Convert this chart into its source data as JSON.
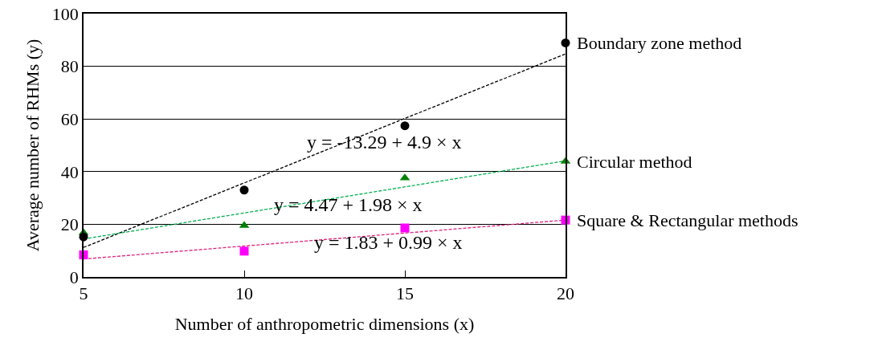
{
  "chart_data": {
    "type": "scatter",
    "xlabel": "Number of anthropometric dimensions (x)",
    "ylabel": "Average number of RHMs (y)",
    "xlim": [
      5,
      20
    ],
    "xticks": [
      5,
      10,
      15,
      20
    ],
    "ylim": [
      0,
      100
    ],
    "yticks": [
      0,
      20,
      40,
      60,
      80,
      100
    ],
    "grid": "y",
    "series": [
      {
        "name": "Boundary zone method",
        "marker": "circle",
        "color": "#000000",
        "x": [
          5,
          10,
          15,
          20
        ],
        "values": [
          15.2,
          33.0,
          57.4,
          88.9
        ]
      },
      {
        "name": "Circular method",
        "marker": "triangle",
        "color": "#008000",
        "x": [
          5,
          10,
          15,
          20
        ],
        "values": [
          16.8,
          19.5,
          37.6,
          43.9
        ]
      },
      {
        "name": "Square & Rectangular methods",
        "marker": "square",
        "color": "#ff00ff",
        "x": [
          5,
          10,
          15,
          20
        ],
        "values": [
          8.4,
          9.8,
          18.6,
          21.6
        ]
      },
      {
        "type": "line",
        "marker": "none",
        "line_style": "dashed",
        "color": "#000000",
        "x": [
          5,
          20
        ],
        "values": [
          11.2,
          84.7
        ]
      },
      {
        "type": "line",
        "marker": "none",
        "line_style": "dashed",
        "color": "#00b050",
        "x": [
          5,
          20
        ],
        "values": [
          14.4,
          44.1
        ]
      },
      {
        "type": "line",
        "marker": "none",
        "line_style": "dashed",
        "color": "#e0207a",
        "x": [
          5,
          20
        ],
        "values": [
          6.8,
          21.6
        ]
      }
    ],
    "annotations": [
      "y = -13.29 + 4.9 × x",
      "y = 4.47 + 1.98 × x",
      "y = 1.83 + 0.99 × x"
    ]
  }
}
